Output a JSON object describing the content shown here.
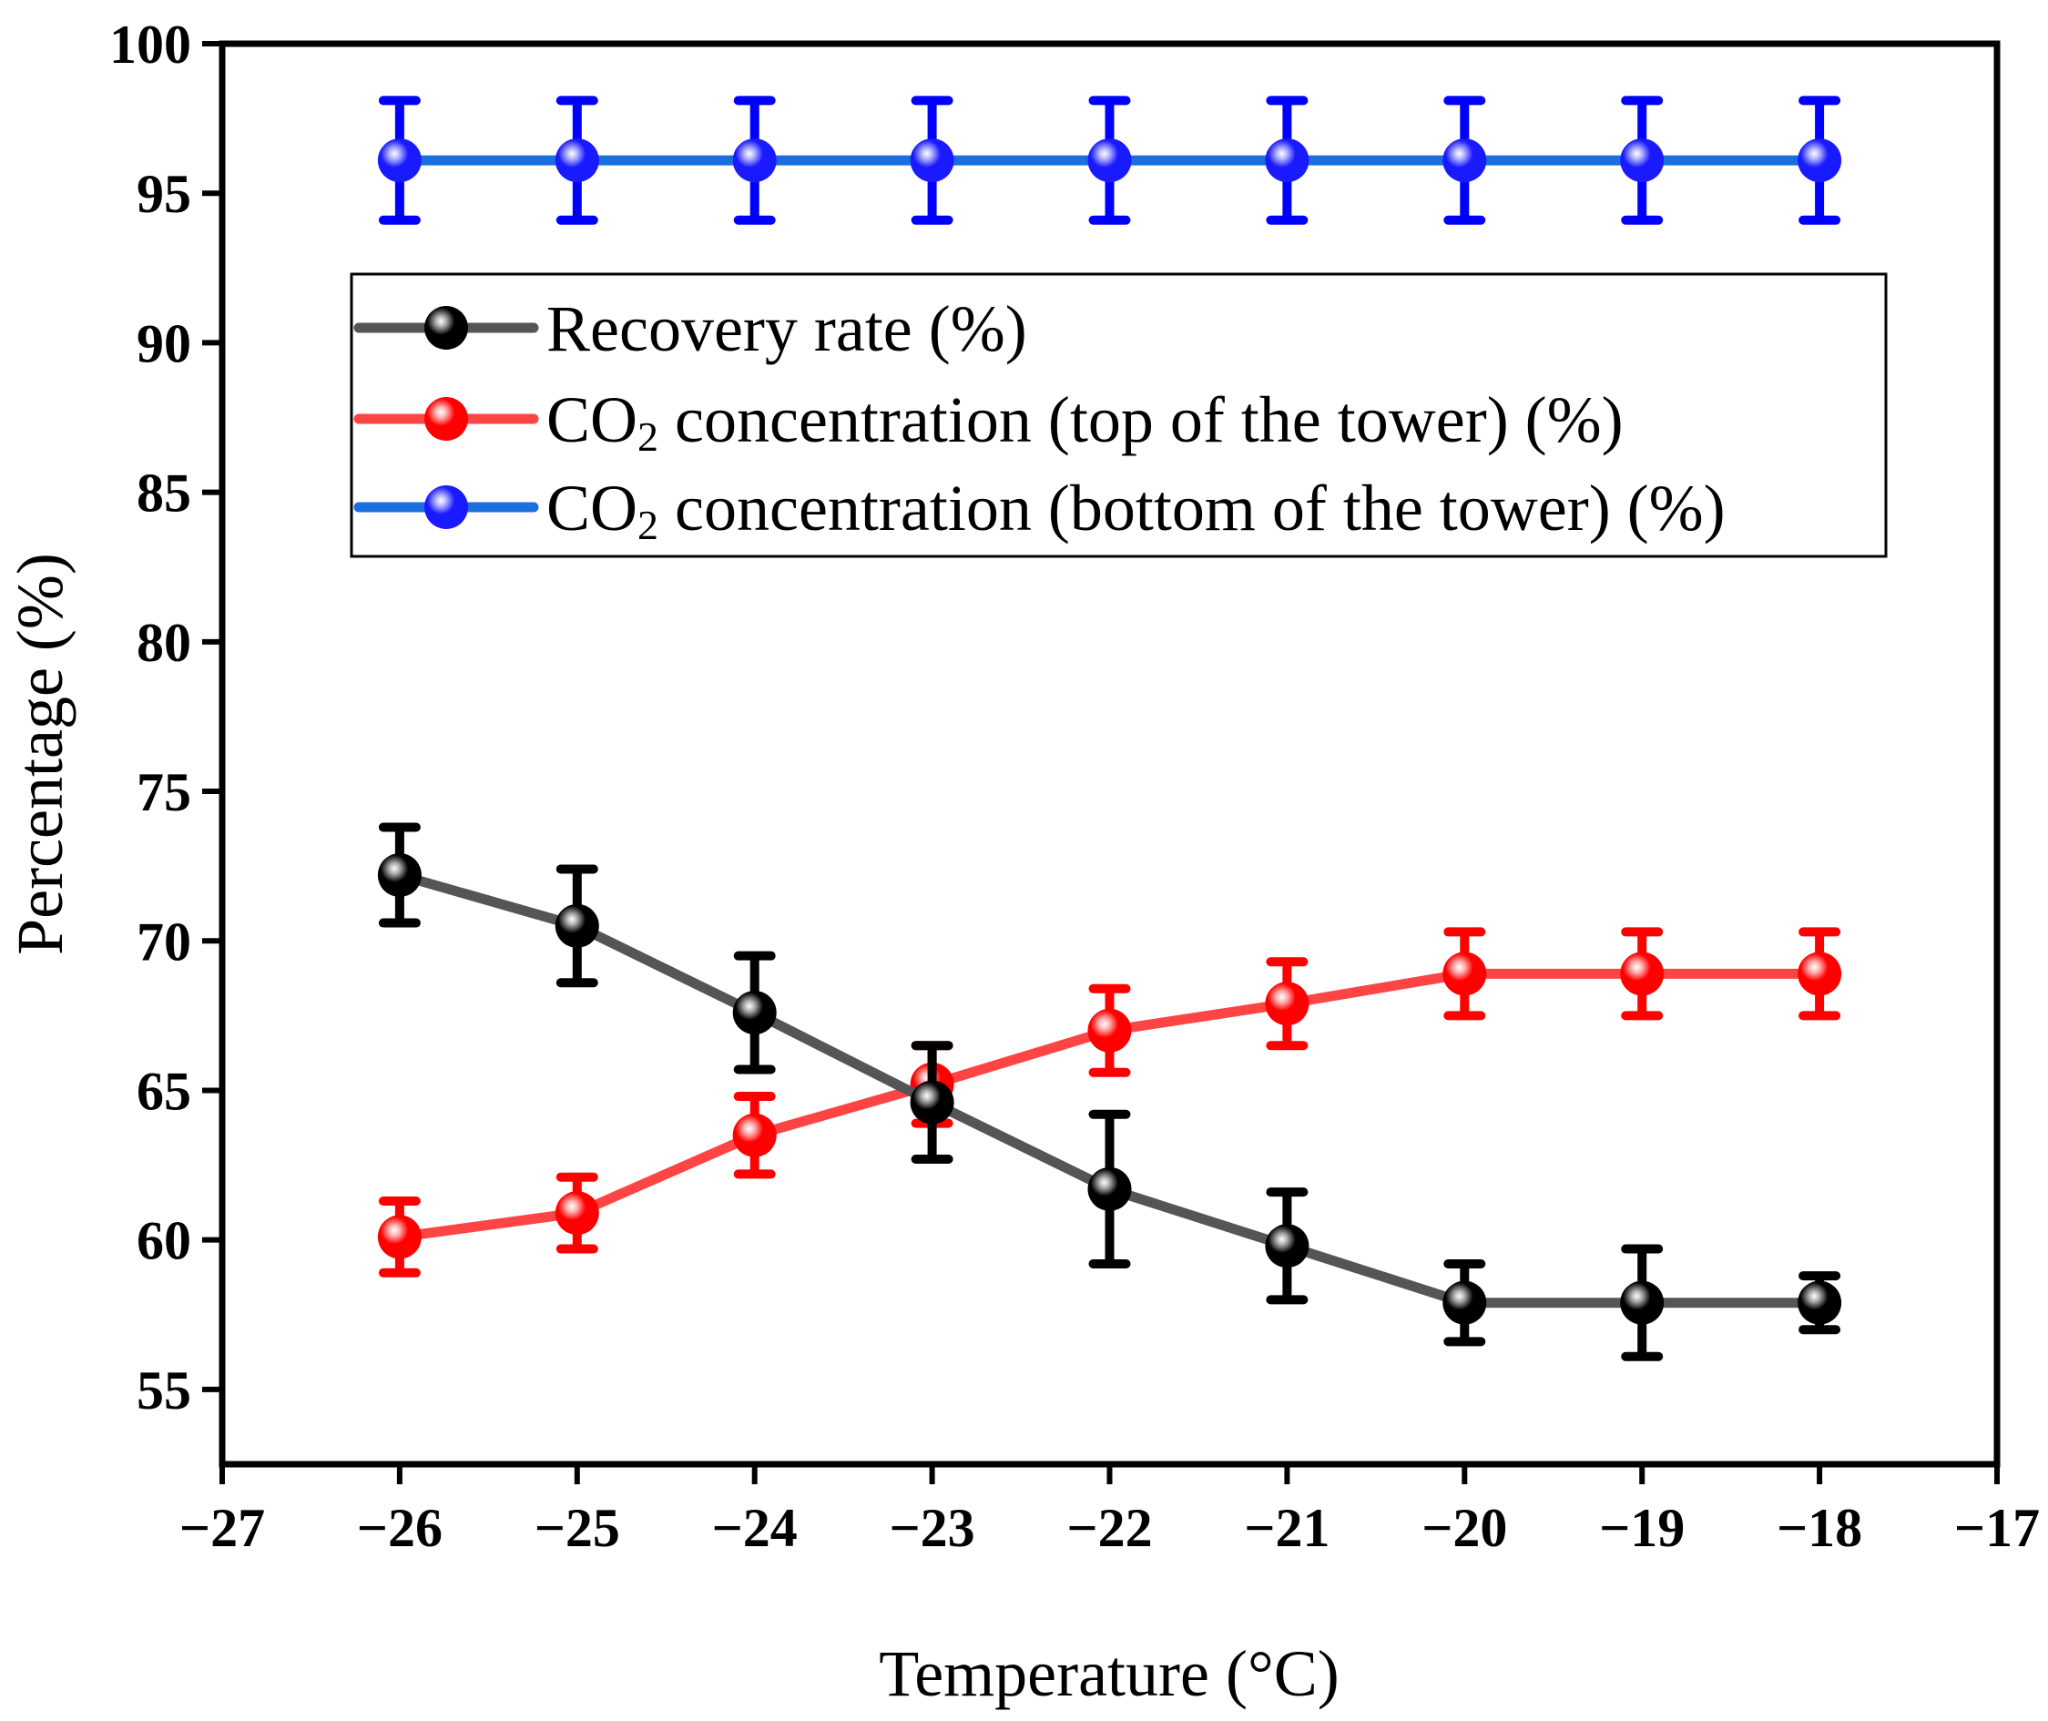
{
  "chart_data": {
    "type": "line",
    "title": "",
    "xlabel": "Temperature (°C)",
    "ylabel": "Percentage (%)",
    "xlim": [
      -27,
      -17
    ],
    "ylim": [
      52.5,
      100
    ],
    "xticks": [
      -27,
      -26,
      -25,
      -24,
      -23,
      -22,
      -21,
      -20,
      -19,
      -18,
      -17
    ],
    "xtick_labels": [
      "−27",
      "−26",
      "−25",
      "−24",
      "−23",
      "−22",
      "−21",
      "−20",
      "−19",
      "−18",
      "−17"
    ],
    "yticks": [
      55,
      60,
      65,
      70,
      75,
      80,
      85,
      90,
      95,
      100
    ],
    "ytick_labels": [
      "55",
      "60",
      "65",
      "70",
      "75",
      "80",
      "85",
      "90",
      "95",
      "100"
    ],
    "grid": false,
    "legend_position": "upper-center",
    "x": [
      -26,
      -25,
      -24,
      -23,
      -22,
      -21,
      -20,
      -19,
      -18
    ],
    "series": [
      {
        "name": "Recovery rate (%)",
        "legend_main": "Recovery rate (%)",
        "legend_sub": "",
        "legend_rest": "",
        "line_color": "#555555",
        "marker_color": "#000000",
        "highlight_color": "#aaaaaa",
        "errbar_color": "#000000",
        "values": [
          72.2,
          70.5,
          67.6,
          64.6,
          61.7,
          59.8,
          57.9,
          57.9,
          57.9
        ],
        "errors": [
          1.6,
          1.9,
          1.9,
          1.9,
          2.5,
          1.8,
          1.3,
          1.8,
          0.9
        ]
      },
      {
        "name": "CO2 concentration (top of the tower) (%)",
        "legend_main": "CO",
        "legend_sub": "2",
        "legend_rest": " concentration (top of the tower) (%)",
        "line_color": "#ff4444",
        "marker_color": "#ff0000",
        "highlight_color": "#ffb0b0",
        "errbar_color": "#ff0000",
        "values": [
          60.1,
          60.9,
          63.5,
          65.2,
          67.0,
          67.9,
          68.9,
          68.9,
          68.9
        ],
        "errors": [
          1.2,
          1.2,
          1.3,
          1.3,
          1.4,
          1.4,
          1.4,
          1.4,
          1.4
        ]
      },
      {
        "name": "CO2 concentration (bottom of the tower) (%)",
        "legend_main": "CO",
        "legend_sub": "2",
        "legend_rest": " concentration (bottom of the tower) (%)",
        "line_color": "#1a6fe0",
        "marker_color": "#1a1aff",
        "highlight_color": "#b0b0ff",
        "errbar_color": "#0000ff",
        "values": [
          96.1,
          96.1,
          96.1,
          96.1,
          96.1,
          96.1,
          96.1,
          96.1,
          96.1
        ],
        "errors": [
          2.0,
          2.0,
          2.0,
          2.0,
          2.0,
          2.0,
          2.0,
          2.0,
          2.0
        ]
      }
    ]
  }
}
